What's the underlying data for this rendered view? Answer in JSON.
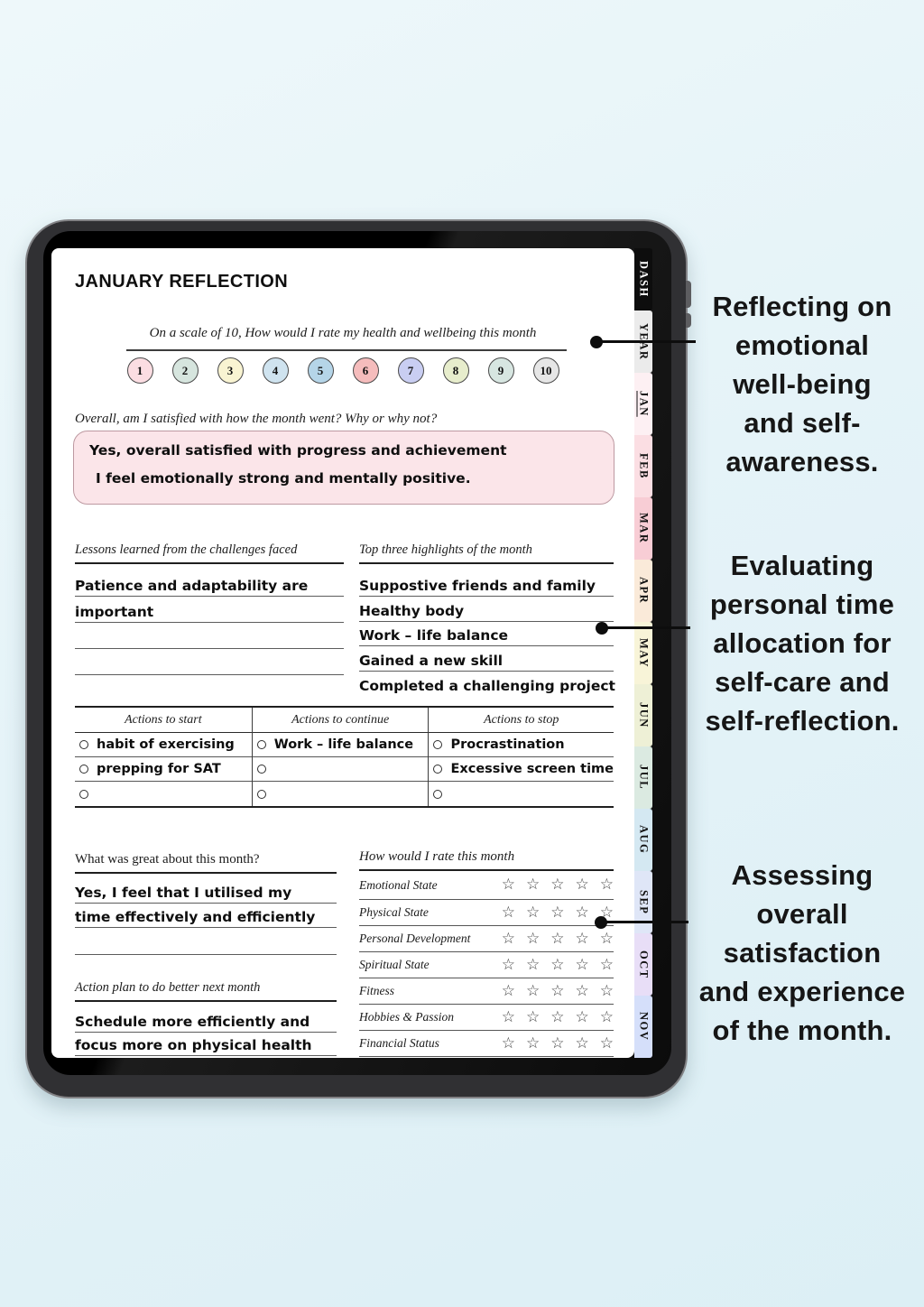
{
  "device": {
    "side_tabs": [
      {
        "label": "DASH",
        "bg": "#0d0d0d",
        "fg": "#ffffff",
        "active": false
      },
      {
        "label": "YEAR",
        "bg": "#ebebeb",
        "fg": "#111111",
        "active": false
      },
      {
        "label": "JAN",
        "bg": "#fdf0f3",
        "fg": "#111111",
        "active": true
      },
      {
        "label": "FEB",
        "bg": "#fbdee3",
        "fg": "#111111",
        "active": false
      },
      {
        "label": "MAR",
        "bg": "#f8cdd5",
        "fg": "#111111",
        "active": false
      },
      {
        "label": "APR",
        "bg": "#faead9",
        "fg": "#111111",
        "active": false
      },
      {
        "label": "MAY",
        "bg": "#f8f4d8",
        "fg": "#111111",
        "active": false
      },
      {
        "label": "JUN",
        "bg": "#eef0d6",
        "fg": "#111111",
        "active": false
      },
      {
        "label": "JUL",
        "bg": "#dbeae1",
        "fg": "#111111",
        "active": false
      },
      {
        "label": "AUG",
        "bg": "#d4e8f2",
        "fg": "#111111",
        "active": false
      },
      {
        "label": "SEP",
        "bg": "#dfe6f7",
        "fg": "#111111",
        "active": false
      },
      {
        "label": "OCT",
        "bg": "#e8def7",
        "fg": "#111111",
        "active": false
      },
      {
        "label": "NOV",
        "bg": "#d5dffa",
        "fg": "#111111",
        "active": false
      }
    ]
  },
  "page": {
    "title": "JANUARY REFLECTION",
    "scale": {
      "question": "On a scale of 10, How would I rate my health and wellbeing this month",
      "options": [
        {
          "value": "1",
          "color": "#fbdde2"
        },
        {
          "value": "2",
          "color": "#d6e5de"
        },
        {
          "value": "3",
          "color": "#f9f4d2"
        },
        {
          "value": "4",
          "color": "#cfe3ef"
        },
        {
          "value": "5",
          "color": "#b5d5e8"
        },
        {
          "value": "6",
          "color": "#f5bcbc"
        },
        {
          "value": "7",
          "color": "#c9cef2"
        },
        {
          "value": "8",
          "color": "#e7edcc"
        },
        {
          "value": "9",
          "color": "#d7e6e1"
        },
        {
          "value": "10",
          "color": "#e6e6e6"
        }
      ]
    },
    "overall": {
      "question": "Overall, am I satisfied with how the month went? Why or why not?",
      "answer_lines": [
        "Yes, overall satisfied with progress and achievement",
        "I feel emotionally strong and mentally positive."
      ]
    },
    "lessons": {
      "label": "Lessons learned from the challenges faced",
      "lines": [
        "Patience and adaptability are",
        "important",
        "",
        ""
      ]
    },
    "highlights": {
      "label": "Top three highlights of the month",
      "lines": [
        "Suppostive friends and family",
        "Healthy body",
        "Work – life balance",
        "Gained a new skill",
        "Completed a challenging project"
      ]
    },
    "actions": {
      "columns": [
        {
          "header": "Actions to start",
          "items": [
            "habit of exercising",
            "prepping for SAT",
            ""
          ]
        },
        {
          "header": "Actions to continue",
          "items": [
            "Work – life balance",
            "",
            ""
          ]
        },
        {
          "header": "Actions to stop",
          "items": [
            "Procrastination",
            "Excessive screen time",
            ""
          ]
        }
      ]
    },
    "great": {
      "label": "What was great about this month?",
      "lines": [
        "Yes, I feel that I utilised my",
        "time effectively and efficiently",
        ""
      ]
    },
    "plan": {
      "label": "Action plan to do better next month",
      "lines": [
        "Schedule more efficiently and",
        "focus more on physical health"
      ]
    },
    "ratings": {
      "label": "How would I rate this month",
      "star_glyph": "☆",
      "stars_per_row": 5,
      "rows": [
        "Emotional State",
        "Physical State",
        "Personal Development",
        "Spiritual State",
        "Fitness",
        "Hobbies & Passion",
        "Financial Status"
      ]
    }
  },
  "annotations": [
    {
      "text": "Reflecting on\nemotional\nwell-being\nand self-\nawareness."
    },
    {
      "text": "Evaluating\npersonal time\nallocation for\nself-care and\nself-reflection."
    },
    {
      "text": "Assessing\noverall\nsatisfaction\nand experience\nof the month."
    }
  ]
}
